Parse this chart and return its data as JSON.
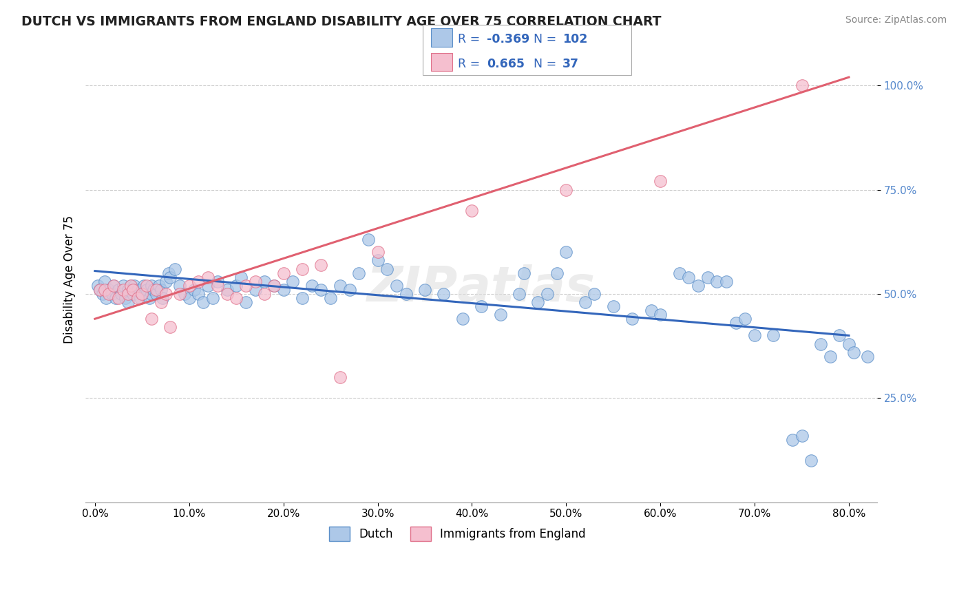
{
  "title": "DUTCH VS IMMIGRANTS FROM ENGLAND DISABILITY AGE OVER 75 CORRELATION CHART",
  "source": "Source: ZipAtlas.com",
  "ylabel": "Disability Age Over 75",
  "xlim": [
    0.0,
    80.0
  ],
  "ylim": [
    0.0,
    1.05
  ],
  "dutch_color": "#adc8e8",
  "dutch_edge_color": "#5b8fc9",
  "england_color": "#f5bfcf",
  "england_edge_color": "#e0708a",
  "trendline_dutch_color": "#3366bb",
  "trendline_england_color": "#e06070",
  "legend_R_dutch": "-0.369",
  "legend_N_dutch": "102",
  "legend_R_england": "0.665",
  "legend_N_england": "37",
  "legend_label_dutch": "Dutch",
  "legend_label_england": "Immigrants from England",
  "legend_text_color": "#3366bb",
  "watermark": "ZIPatlas",
  "dutch_x": [
    0.3,
    0.5,
    0.8,
    1.0,
    1.2,
    1.5,
    1.8,
    2.0,
    2.2,
    2.5,
    2.8,
    3.0,
    3.2,
    3.5,
    3.5,
    3.8,
    4.0,
    4.0,
    4.2,
    4.5,
    4.8,
    5.0,
    5.2,
    5.5,
    5.8,
    6.0,
    6.0,
    6.2,
    6.5,
    6.8,
    7.0,
    7.2,
    7.5,
    7.8,
    8.0,
    8.5,
    9.0,
    9.5,
    10.0,
    10.5,
    11.0,
    11.5,
    12.0,
    12.5,
    13.0,
    14.0,
    15.0,
    15.5,
    16.0,
    17.0,
    18.0,
    19.0,
    20.0,
    21.0,
    22.0,
    23.0,
    24.0,
    25.0,
    26.0,
    27.0,
    28.0,
    29.0,
    30.0,
    31.0,
    32.0,
    33.0,
    35.0,
    37.0,
    39.0,
    41.0,
    43.0,
    45.0,
    45.5,
    47.0,
    48.0,
    49.0,
    50.0,
    52.0,
    53.0,
    55.0,
    57.0,
    59.0,
    60.0,
    62.0,
    63.0,
    64.0,
    65.0,
    66.0,
    67.0,
    68.0,
    69.0,
    70.0,
    72.0,
    74.0,
    75.0,
    76.0,
    77.0,
    78.0,
    79.0,
    80.0,
    80.5,
    82.0
  ],
  "dutch_y": [
    0.52,
    0.51,
    0.5,
    0.53,
    0.49,
    0.51,
    0.5,
    0.52,
    0.49,
    0.51,
    0.5,
    0.52,
    0.49,
    0.51,
    0.48,
    0.52,
    0.51,
    0.5,
    0.52,
    0.51,
    0.49,
    0.5,
    0.52,
    0.51,
    0.49,
    0.5,
    0.52,
    0.51,
    0.5,
    0.52,
    0.51,
    0.49,
    0.53,
    0.55,
    0.54,
    0.56,
    0.52,
    0.5,
    0.49,
    0.51,
    0.5,
    0.48,
    0.52,
    0.49,
    0.53,
    0.51,
    0.52,
    0.54,
    0.48,
    0.51,
    0.53,
    0.52,
    0.51,
    0.53,
    0.49,
    0.52,
    0.51,
    0.49,
    0.52,
    0.51,
    0.55,
    0.63,
    0.58,
    0.56,
    0.52,
    0.5,
    0.51,
    0.5,
    0.44,
    0.47,
    0.45,
    0.5,
    0.55,
    0.48,
    0.5,
    0.55,
    0.6,
    0.48,
    0.5,
    0.47,
    0.44,
    0.46,
    0.45,
    0.55,
    0.54,
    0.52,
    0.54,
    0.53,
    0.53,
    0.43,
    0.44,
    0.4,
    0.4,
    0.15,
    0.16,
    0.1,
    0.38,
    0.35,
    0.4,
    0.38,
    0.36,
    0.35
  ],
  "england_x": [
    0.5,
    1.0,
    1.5,
    2.0,
    2.5,
    3.0,
    3.5,
    3.8,
    4.0,
    4.5,
    5.0,
    5.5,
    6.0,
    6.5,
    7.0,
    7.5,
    8.0,
    9.0,
    10.0,
    11.0,
    12.0,
    13.0,
    14.0,
    15.0,
    16.0,
    17.0,
    18.0,
    19.0,
    20.0,
    22.0,
    24.0,
    26.0,
    30.0,
    40.0,
    50.0,
    60.0,
    75.0
  ],
  "england_y": [
    0.51,
    0.51,
    0.5,
    0.52,
    0.49,
    0.51,
    0.5,
    0.52,
    0.51,
    0.49,
    0.5,
    0.52,
    0.44,
    0.51,
    0.48,
    0.5,
    0.42,
    0.5,
    0.52,
    0.53,
    0.54,
    0.52,
    0.5,
    0.49,
    0.52,
    0.53,
    0.5,
    0.52,
    0.55,
    0.56,
    0.57,
    0.3,
    0.6,
    0.7,
    0.75,
    0.77,
    1.0
  ],
  "trendline_dutch_x0": 0.0,
  "trendline_dutch_y0": 0.555,
  "trendline_dutch_x1": 80.0,
  "trendline_dutch_y1": 0.4,
  "trendline_england_x0": 0.0,
  "trendline_england_y0": 0.44,
  "trendline_england_x1": 80.0,
  "trendline_england_y1": 1.02
}
